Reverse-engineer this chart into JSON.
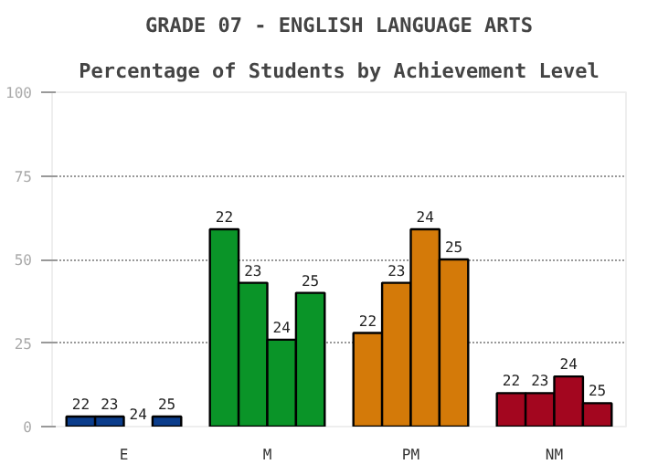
{
  "chart_data": {
    "type": "bar",
    "title": "GRADE 07 - ENGLISH LANGUAGE ARTS",
    "subtitle": "Percentage of Students by Achievement Level",
    "categories": [
      "E",
      "M",
      "PM",
      "NM"
    ],
    "series": [
      {
        "name": "22",
        "colors": [
          "#0b3d8c",
          "#0a9428",
          "#d47a09",
          "#a3061f"
        ],
        "values": [
          3,
          59,
          28,
          10
        ]
      },
      {
        "name": "23",
        "colors": [
          "#0b3d8c",
          "#0a9428",
          "#d47a09",
          "#a3061f"
        ],
        "values": [
          3,
          43,
          43,
          10
        ]
      },
      {
        "name": "24",
        "colors": [
          "#0b3d8c",
          "#0a9428",
          "#d47a09",
          "#a3061f"
        ],
        "values": [
          0,
          26,
          59,
          15
        ]
      },
      {
        "name": "25",
        "colors": [
          "#0b3d8c",
          "#0a9428",
          "#d47a09",
          "#a3061f"
        ],
        "values": [
          3,
          40,
          50,
          7
        ]
      }
    ],
    "ylim": [
      0,
      100
    ],
    "yticks": [
      0,
      25,
      50,
      75,
      100
    ],
    "grid": "y"
  }
}
